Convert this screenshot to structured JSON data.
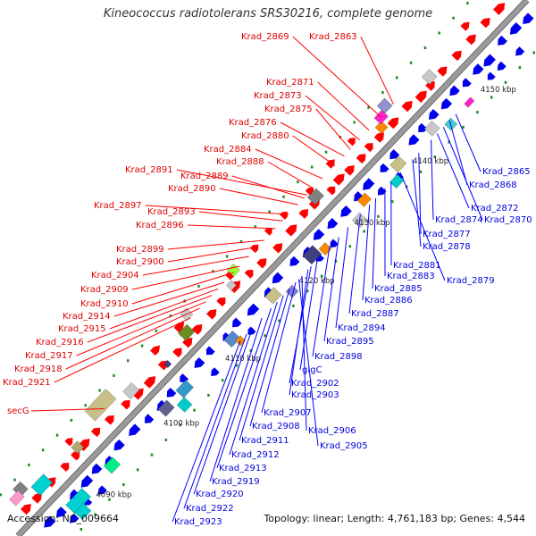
{
  "title": "Kineococcus radiotolerans SRS30216, complete genome",
  "accession": "Accession: NC_009664",
  "summary": "Topology: linear; Length: 4,761,183 bp; Genes: 4,544",
  "colors": {
    "backbone": "#9a9a9a",
    "left_label": "#dd0000",
    "right_label": "#0000dd",
    "tick": "#228822"
  },
  "kbp_labels": [
    "4090 kbp",
    "4100 kbp",
    "4110 kbp",
    "4120 kbp",
    "4130 kbp",
    "4140 kbp",
    "4150 kbp"
  ],
  "left_labels": [
    "Krad_2869",
    "Krad_2863",
    "Krad_2871",
    "Krad_2873",
    "Krad_2875",
    "Krad_2876",
    "Krad_2880",
    "Krad_2884",
    "Krad_2888",
    "Krad_2891",
    "Krad_2889",
    "Krad_2890",
    "Krad_2897",
    "Krad_2893",
    "Krad_2896",
    "Krad_2899",
    "Krad_2900",
    "Krad_2904",
    "Krad_2909",
    "Krad_2910",
    "Krad_2914",
    "Krad_2915",
    "Krad_2916",
    "Krad_2917",
    "Krad_2918",
    "Krad_2921",
    "secG"
  ],
  "right_labels": [
    "Krad_2865",
    "Krad_2868",
    "Krad_2872",
    "Krad_2874",
    "Krad_2870",
    "Krad_2877",
    "Krad_2878",
    "Krad_2881",
    "Krad_2883",
    "Krad_2879",
    "Krad_2885",
    "Krad_2886",
    "Krad_2887",
    "Krad_2894",
    "Krad_2895",
    "Krad_2898",
    "glgC",
    "Krad_2902",
    "Krad_2903",
    "Krad_2907",
    "Krad_2908",
    "Krad_2906",
    "Krad_2905",
    "Krad_2911",
    "Krad_2912",
    "Krad_2913",
    "Krad_2919",
    "Krad_2920",
    "Krad_2922",
    "Krad_2923"
  ]
}
